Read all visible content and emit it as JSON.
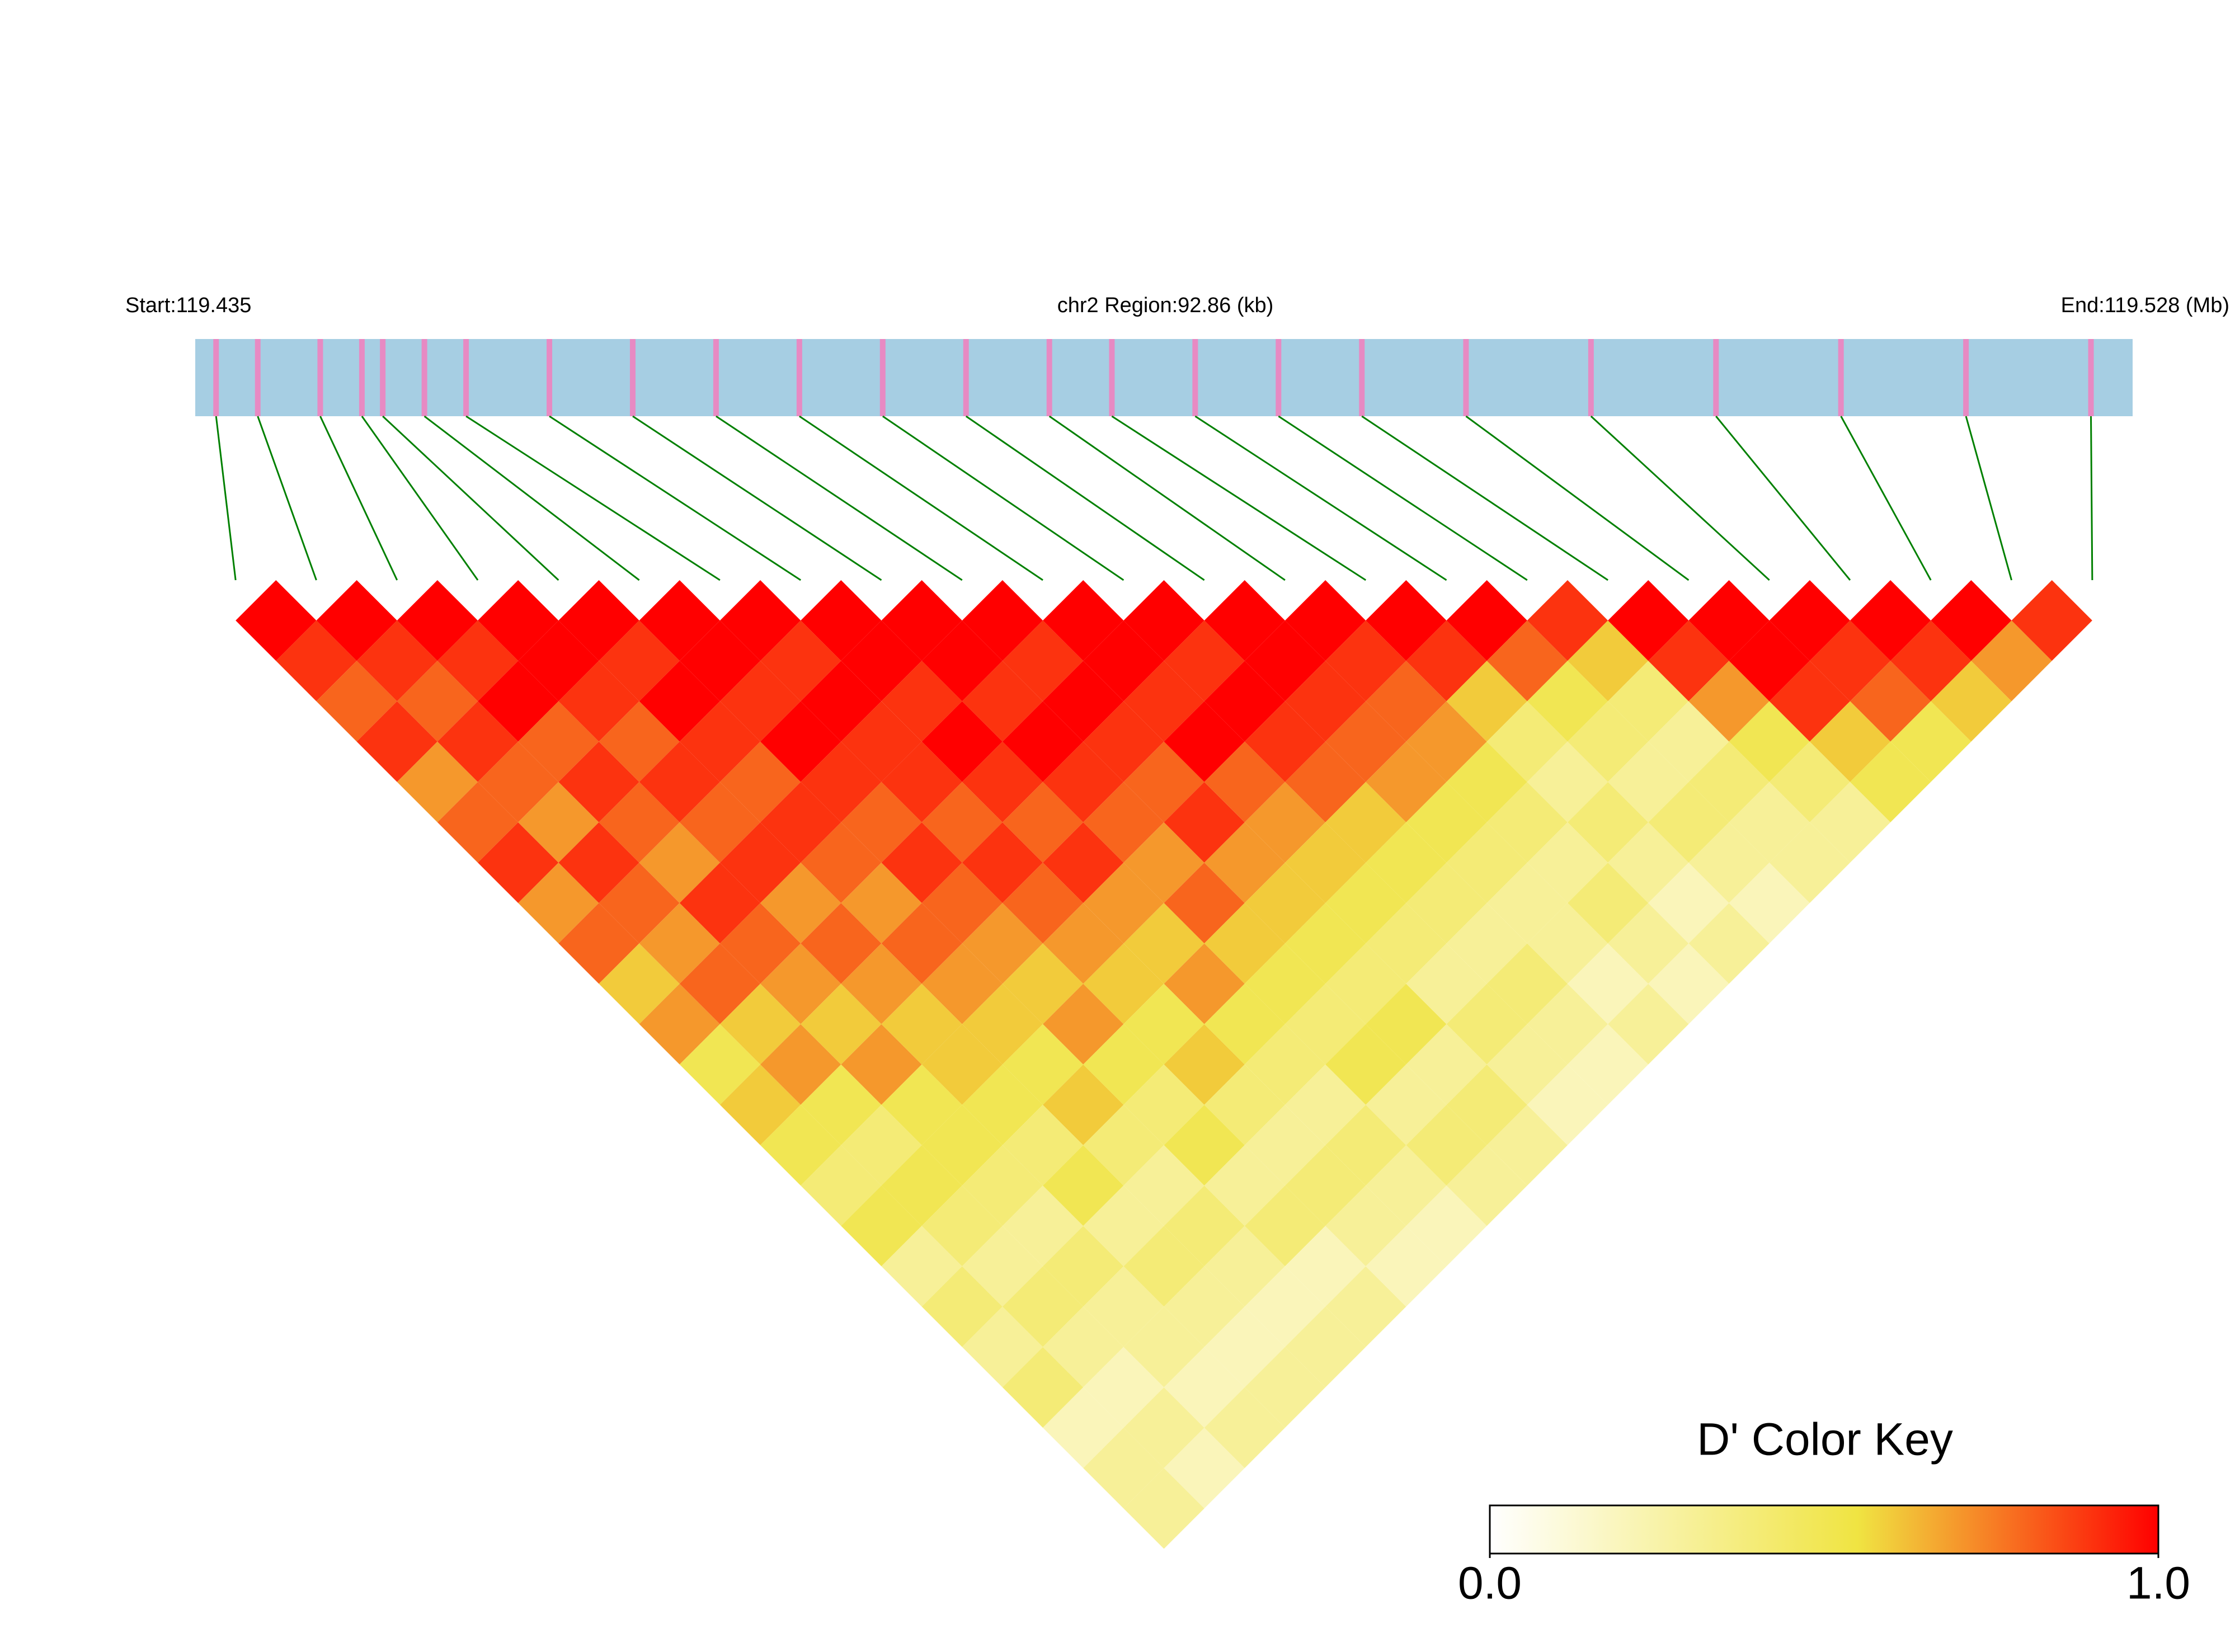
{
  "chart_data": {
    "type": "ld_heatmap",
    "title_left": "Start:119.435",
    "title_center": "chr2 Region:92.86 (kb)",
    "title_right": "End:119.528 (Mb)",
    "xlim": [
      119.435,
      119.528
    ],
    "positions": [
      119.436,
      119.438,
      119.441,
      119.443,
      119.444,
      119.446,
      119.448,
      119.452,
      119.456,
      119.46,
      119.464,
      119.468,
      119.472,
      119.476,
      119.479,
      119.483,
      119.487,
      119.491,
      119.496,
      119.502,
      119.508,
      119.514,
      119.52,
      119.526
    ],
    "matrix": [
      [
        1,
        0.9,
        0.8,
        0.9,
        0.7,
        0.8,
        0.9,
        0.7,
        0.8,
        0.6,
        0.7,
        0.5,
        0.6,
        0.5,
        0.4,
        0.5,
        0.3,
        0.4,
        0.3,
        0.4,
        0.2,
        0.3,
        0.3
      ],
      [
        1,
        0.9,
        0.8,
        0.9,
        0.8,
        0.7,
        0.9,
        0.8,
        0.7,
        0.8,
        0.6,
        0.7,
        0.5,
        0.4,
        0.5,
        0.4,
        0.3,
        0.4,
        0.3,
        0.2,
        0.3,
        0.2
      ],
      [
        1,
        0.9,
        1,
        0.8,
        0.9,
        0.8,
        0.7,
        0.9,
        0.8,
        0.7,
        0.6,
        0.7,
        0.5,
        0.5,
        0.4,
        0.3,
        0.4,
        0.3,
        0.3,
        0.2,
        0.3
      ],
      [
        1,
        1,
        0.9,
        0.8,
        0.9,
        0.8,
        0.9,
        0.7,
        0.8,
        0.7,
        0.6,
        0.6,
        0.5,
        0.4,
        0.5,
        0.3,
        0.4,
        0.3,
        0.2,
        0.3
      ],
      [
        1,
        0.9,
        1,
        0.9,
        0.8,
        0.9,
        0.8,
        0.7,
        0.8,
        0.7,
        0.6,
        0.5,
        0.6,
        0.4,
        0.3,
        0.4,
        0.3,
        0.2,
        0.3
      ],
      [
        1,
        1,
        0.9,
        1,
        0.9,
        0.8,
        0.9,
        0.8,
        0.7,
        0.6,
        0.7,
        0.5,
        0.4,
        0.5,
        0.3,
        0.4,
        0.2,
        0.3
      ],
      [
        1,
        0.9,
        1,
        0.9,
        0.9,
        0.8,
        0.9,
        0.8,
        0.7,
        0.6,
        0.5,
        0.6,
        0.4,
        0.3,
        0.4,
        0.3,
        0.2
      ],
      [
        1,
        1,
        0.9,
        1,
        0.9,
        0.8,
        0.9,
        0.7,
        0.6,
        0.7,
        0.5,
        0.4,
        0.3,
        0.4,
        0.3,
        0.2
      ],
      [
        1,
        1,
        0.9,
        1,
        0.9,
        0.8,
        0.7,
        0.8,
        0.6,
        0.5,
        0.4,
        0.5,
        0.3,
        0.4,
        0.3
      ],
      [
        1,
        0.9,
        1,
        0.9,
        0.8,
        0.9,
        0.7,
        0.6,
        0.5,
        0.4,
        0.5,
        0.3,
        0.4,
        0.3
      ],
      [
        1,
        1,
        0.9,
        1,
        0.8,
        0.7,
        0.6,
        0.5,
        0.4,
        0.3,
        0.4,
        0.3,
        0.2
      ],
      [
        1,
        0.9,
        1,
        0.9,
        0.8,
        0.6,
        0.5,
        0.4,
        0.3,
        0.4,
        0.3,
        0.2
      ],
      [
        1,
        1,
        0.9,
        0.8,
        0.7,
        0.5,
        0.4,
        0.3,
        0.3,
        0.2,
        0.3
      ],
      [
        1,
        0.9,
        0.8,
        0.7,
        0.5,
        0.4,
        0.3,
        0.4,
        0.3,
        0.2
      ],
      [
        1,
        0.9,
        0.6,
        0.4,
        0.3,
        0.4,
        0.3,
        0.2,
        0.3
      ],
      [
        1,
        0.8,
        0.5,
        0.4,
        0.3,
        0.4,
        0.3,
        0.2
      ],
      [
        0.9,
        0.6,
        0.4,
        0.3,
        0.4,
        0.3,
        0.3
      ],
      [
        1,
        0.9,
        0.7,
        0.5,
        0.4,
        0.3
      ],
      [
        1,
        1,
        0.9,
        0.6,
        0.5
      ],
      [
        1,
        0.9,
        0.8,
        0.5
      ],
      [
        1,
        0.9,
        0.6
      ],
      [
        1,
        0.7
      ],
      [
        0.9
      ]
    ],
    "colorscale": [
      [
        0,
        "#ffffff"
      ],
      [
        0.55,
        "#f0e442"
      ],
      [
        1,
        "#ff0000"
      ]
    ],
    "colorbar_title": "D' Color Key",
    "clim": [
      0,
      1
    ],
    "cticks": [
      {
        "value": 0,
        "label": "0.0"
      },
      {
        "value": 1,
        "label": "1.0"
      }
    ]
  }
}
